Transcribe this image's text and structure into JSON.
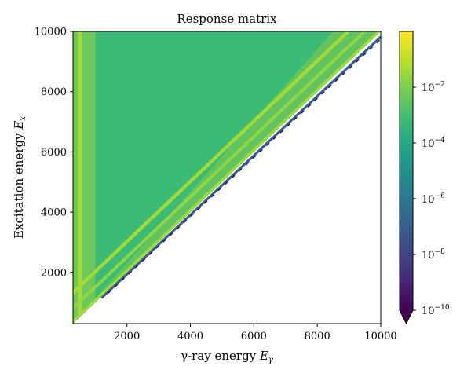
{
  "chart_data": {
    "type": "heatmap",
    "title": "Response matrix",
    "xlabel": "γ-ray energy",
    "xlabel_var": "E",
    "xlabel_sub": "γ",
    "ylabel": "Excitation energy",
    "ylabel_var": "E",
    "ylabel_sub": "x",
    "xlim": [
      300,
      10000
    ],
    "ylim": [
      300,
      10000
    ],
    "x_ticks": [
      "2000",
      "4000",
      "6000",
      "8000",
      "10000"
    ],
    "y_ticks": [
      "2000",
      "4000",
      "6000",
      "8000",
      "10000"
    ],
    "x_tick_values": [
      2000,
      4000,
      6000,
      8000,
      10000
    ],
    "y_tick_values": [
      2000,
      4000,
      6000,
      8000,
      10000
    ],
    "scale": "log",
    "colormap": "viridis",
    "colorbar": {
      "ticks": [
        {
          "base": "10",
          "exp": "−2",
          "value": 0.01
        },
        {
          "base": "10",
          "exp": "−4",
          "value": 0.0001
        },
        {
          "base": "10",
          "exp": "−6",
          "value": 1e-06
        },
        {
          "base": "10",
          "exp": "−8",
          "value": 1e-08
        },
        {
          "base": "10",
          "exp": "−10",
          "value": 1e-10
        }
      ],
      "range": [
        1e-10,
        1.0
      ],
      "extend": "min"
    },
    "structure": {
      "nonzero_region": "Ex >= Egamma (upper-left triangle)",
      "background_level": 0.0003,
      "photopeak_diagonal_level": 0.005,
      "single_escape_offset_keV": 511,
      "double_escape_offset_keV": 1022,
      "annihilation_line_Egamma_keV": 511,
      "edge_level": 1e-08
    },
    "colors": {
      "background_green": "#3bbb75",
      "diagonal_yellowgreen": "#a2da37",
      "edge_blue": "#2c5f8a",
      "edge_purple": "#440154"
    }
  }
}
